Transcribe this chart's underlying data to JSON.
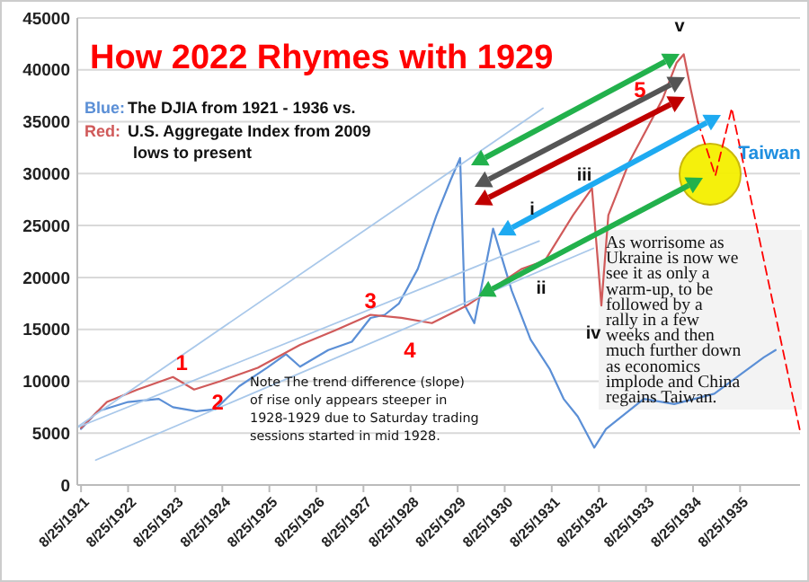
{
  "chart_data": {
    "type": "line",
    "title": "How 2022 Rhymes with 1929",
    "xlim": [
      "1921-07-27",
      "1936-12-02"
    ],
    "xticks": [
      {
        "value": "1921-08-25",
        "label": "8/25/1921"
      },
      {
        "value": "1922-08-25",
        "label": "8/25/1922"
      },
      {
        "value": "1923-08-25",
        "label": "8/25/1923"
      },
      {
        "value": "1924-08-25",
        "label": "8/25/1924"
      },
      {
        "value": "1925-08-25",
        "label": "8/25/1925"
      },
      {
        "value": "1926-08-25",
        "label": "8/25/1926"
      },
      {
        "value": "1927-08-25",
        "label": "8/25/1927"
      },
      {
        "value": "1928-08-25",
        "label": "8/25/1928"
      },
      {
        "value": "1929-08-25",
        "label": "8/25/1929"
      },
      {
        "value": "1930-08-25",
        "label": "8/25/1930"
      },
      {
        "value": "1931-08-25",
        "label": "8/25/1931"
      },
      {
        "value": "1932-08-25",
        "label": "8/25/1932"
      },
      {
        "value": "1933-08-25",
        "label": "8/25/1933"
      },
      {
        "value": "1934-08-25",
        "label": "8/25/1934"
      },
      {
        "value": "1935-08-25",
        "label": "8/25/1935"
      }
    ],
    "ylim": [
      0,
      45000
    ],
    "yticks": [
      0,
      5000,
      10000,
      15000,
      20000,
      25000,
      30000,
      35000,
      40000,
      45000
    ],
    "grid": "y",
    "legend": "top left",
    "marker": "none",
    "series": [
      {
        "name": "Blue: The DJIA from 1921 - 1936 vs.",
        "color": "#5b8fd6",
        "x": [
          "1921-08-25",
          "1922-01-01",
          "1922-08-25",
          "1923-04-20",
          "1923-08-08",
          "1924-02-06",
          "1924-07-02",
          "1925-01-01",
          "1925-08-08",
          "1926-01-01",
          "1926-04-20",
          "1926-11-25",
          "1927-05-27",
          "1927-10-19",
          "1928-02-06",
          "1928-05-27",
          "1928-10-19",
          "1929-03-14",
          "1929-07-02",
          "1929-09-13",
          "1929-10-19",
          "1930-01-01",
          "1930-05-27",
          "1930-10-19",
          "1931-03-14",
          "1931-08-08",
          "1931-11-25",
          "1932-03-14",
          "1932-07-20",
          "1932-10-19",
          "1933-08-08",
          "1934-04-01",
          "1935-02-06",
          "1936-02-25",
          "1936-05-27"
        ],
        "values": [
          5400,
          7100,
          8000,
          8300,
          7500,
          7100,
          7300,
          9500,
          11300,
          12600,
          11400,
          13000,
          13800,
          16100,
          16400,
          17500,
          20800,
          26000,
          29400,
          31500,
          17300,
          15600,
          24700,
          18700,
          14000,
          11200,
          8300,
          6600,
          3600,
          5400,
          8300,
          7800,
          8800,
          12300,
          13000
        ]
      },
      {
        "name": "Red: U.S. Aggregate Index from 2009 lows to present",
        "color": "#d05a5a",
        "x": [
          "1921-08-25",
          "1922-03-14",
          "1922-11-06",
          "1923-08-08",
          "1924-01-19",
          "1924-08-08",
          "1925-05-27",
          "1926-04-20",
          "1927-01-19",
          "1927-10-19",
          "1928-06-14",
          "1929-02-06",
          "1929-11-06",
          "1931-01-01",
          "1931-07-02",
          "1932-02-06",
          "1932-07-02",
          "1932-09-13",
          "1932-11-06",
          "1933-04-20",
          "1933-09-13",
          "1934-01-01",
          "1934-04-20",
          "1934-06-14",
          "1934-08-08",
          "1934-10-01"
        ],
        "values": [
          5500,
          8000,
          9200,
          10400,
          9200,
          10000,
          11300,
          13500,
          14900,
          16400,
          16100,
          15600,
          17300,
          20800,
          21600,
          26000,
          28600,
          17300,
          26000,
          31200,
          34600,
          37200,
          40700,
          41500,
          38100,
          35000
        ]
      },
      {
        "color": "#ff0000",
        "line_style": "dashed",
        "x": [
          "1934-10-01",
          "1935-02-14",
          "1935-06-21",
          "1936-12-02"
        ],
        "values": [
          35000,
          29800,
          36300,
          5200
        ]
      },
      {
        "color": "#a9c8ea",
        "x": [
          "1921-08-08",
          "1931-06-18"
        ],
        "values": [
          5700,
          36300
        ]
      },
      {
        "color": "#a9c8ea",
        "x": [
          "1921-08-08",
          "1931-05-19"
        ],
        "values": [
          5600,
          23500
        ]
      },
      {
        "color": "#a9c8ea",
        "x": [
          "1921-12-17",
          "1932-07-13"
        ],
        "values": [
          2400,
          22800
        ]
      }
    ],
    "annotations": [
      {
        "text": "1",
        "x": "1923-10-15",
        "y": 11800
      },
      {
        "text": "2",
        "x": "1924-07-20",
        "y": 8000
      },
      {
        "text": "3",
        "x": "1927-10-19",
        "y": 17800
      },
      "4",
      "5",
      "i",
      "ii",
      "iii",
      "iv",
      "v",
      "Taiwan",
      "Note The trend difference (slope) of rise only appears steeper in 1928-1929 due to Saturday trading sessions started in mid 1928.",
      "As worrisome as Ukraine is now we see it as only a warm-up, to be followed by a rally in a few weeks and then much further down as economics implode and China regains Taiwan."
    ]
  }
}
